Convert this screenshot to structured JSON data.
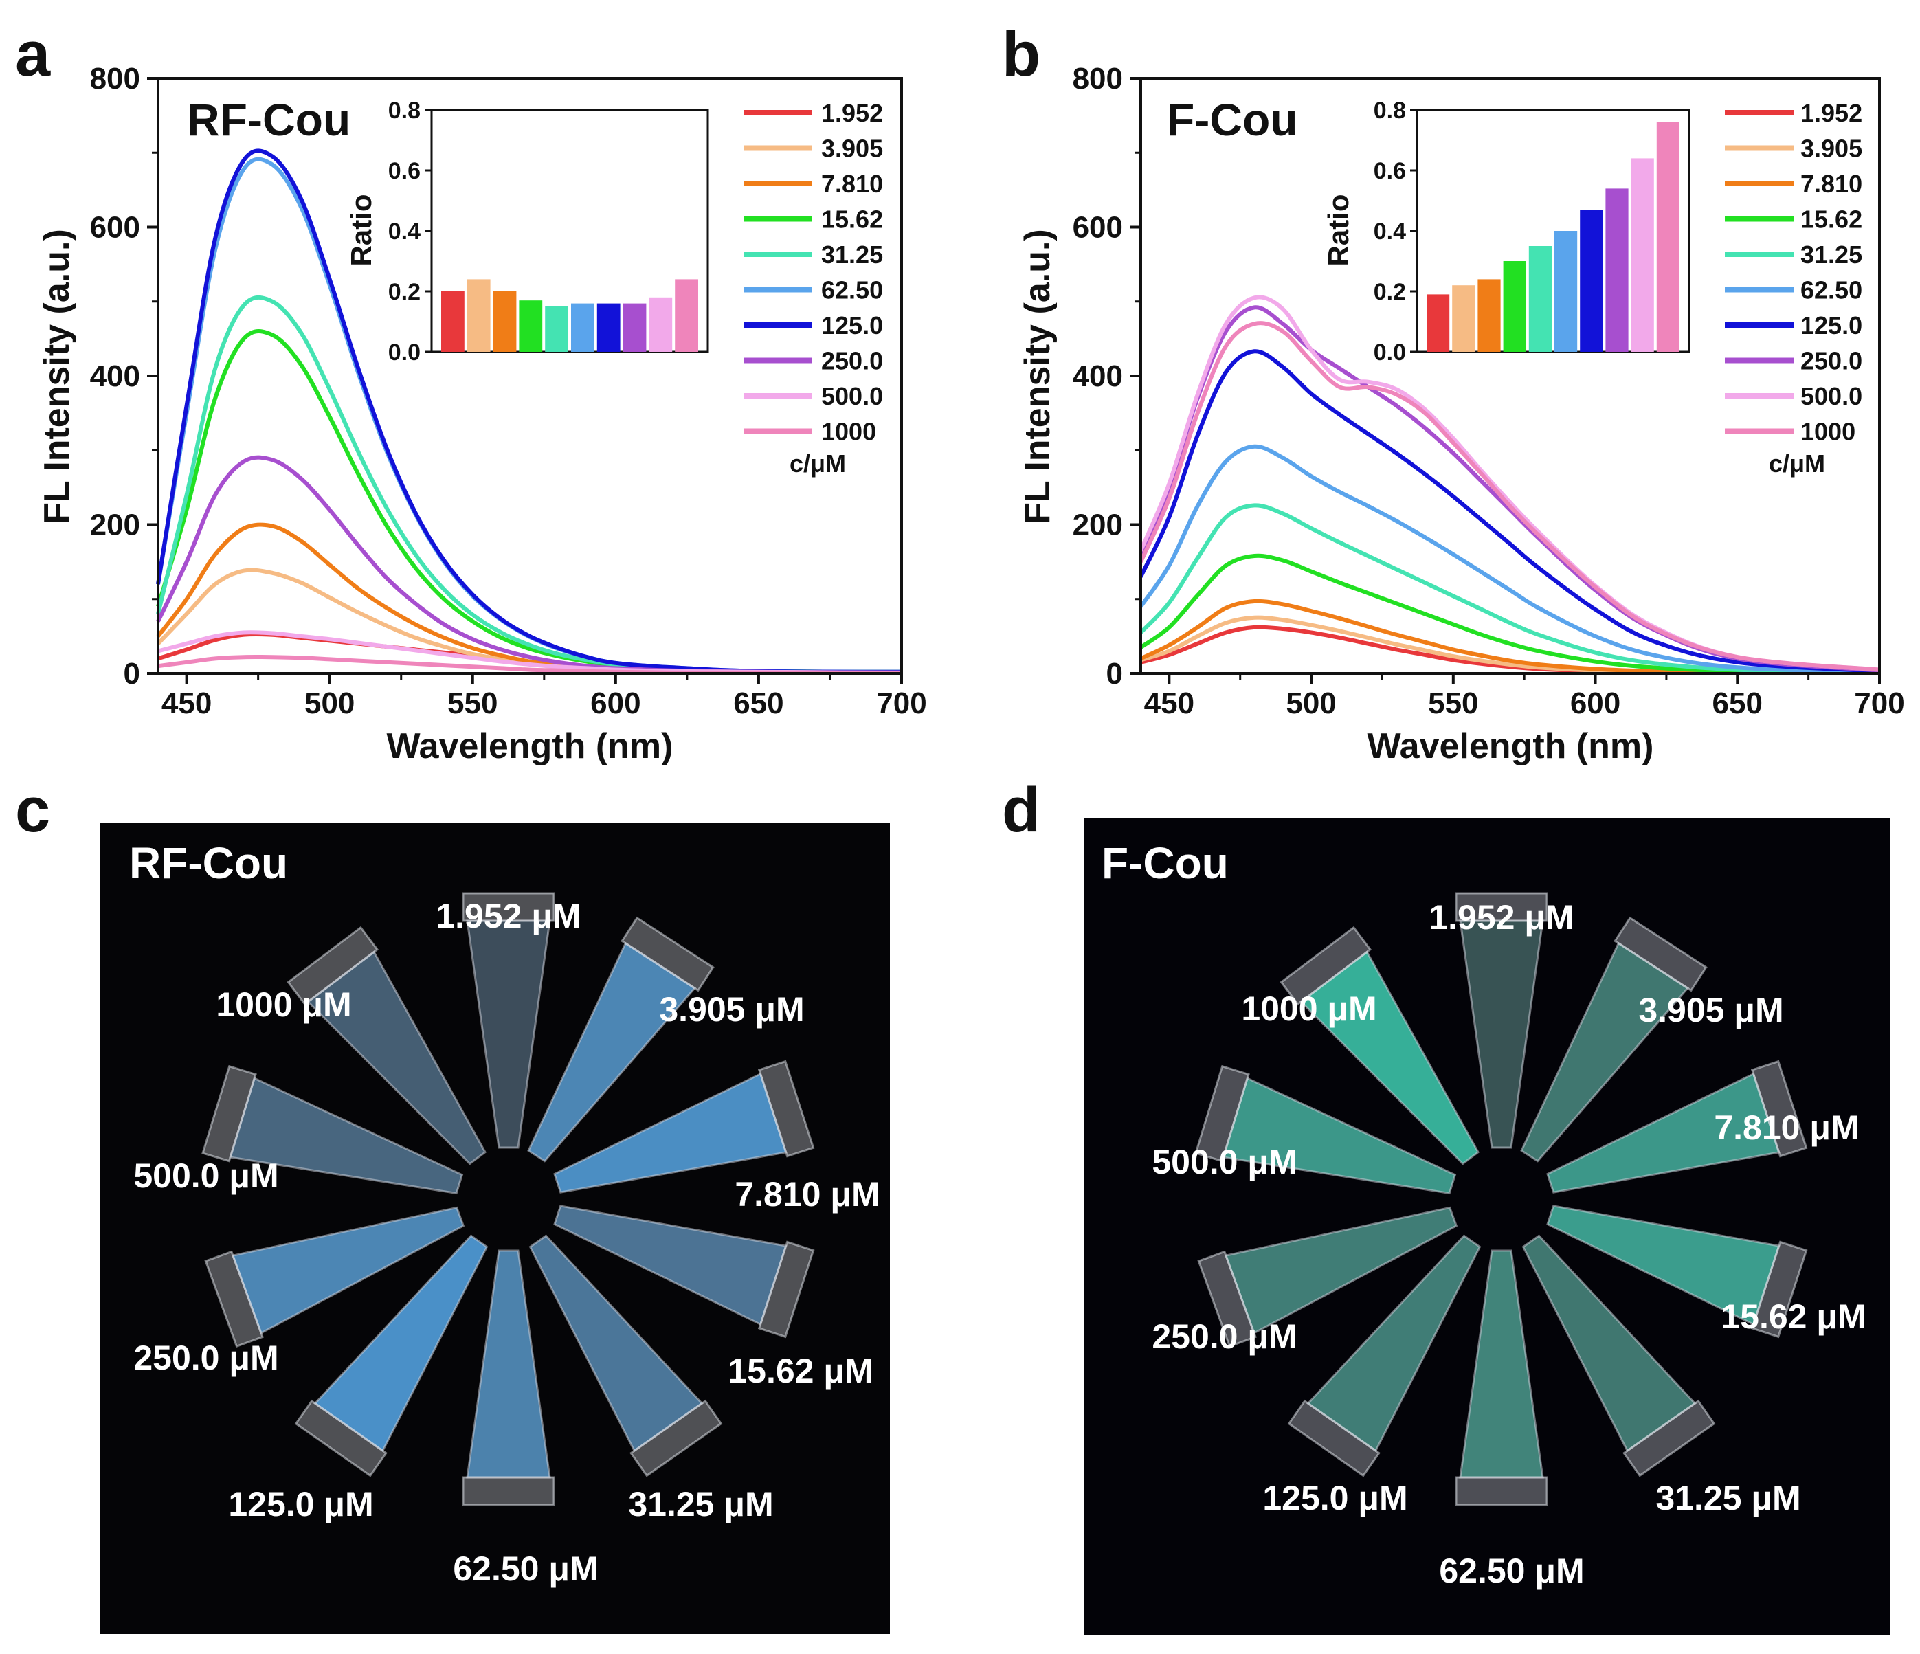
{
  "chart_data": [
    {
      "type": "line",
      "panel": "a",
      "title": "RF-Cou",
      "xlabel": "Wavelength (nm)",
      "ylabel": "FL Intensity (a.u.)",
      "xlim": [
        440,
        700
      ],
      "ylim": [
        0,
        800
      ],
      "xticks": [
        "450",
        "500",
        "550",
        "600",
        "650",
        "700"
      ],
      "yticks": [
        "0",
        "200",
        "400",
        "600",
        "800"
      ],
      "legend_title": "c/μM",
      "series": [
        {
          "name": "1.952",
          "color": "#e8383b",
          "x": [
            440,
            450,
            460,
            470,
            480,
            490,
            500,
            510,
            520,
            530,
            540,
            550,
            560,
            570,
            580,
            590,
            600,
            620,
            650,
            700
          ],
          "y": [
            20,
            32,
            45,
            52,
            52,
            48,
            44,
            40,
            36,
            32,
            28,
            24,
            20,
            16,
            12,
            9,
            7,
            4,
            2,
            1
          ]
        },
        {
          "name": "3.905",
          "color": "#f6bb84",
          "x": [
            440,
            450,
            460,
            470,
            480,
            490,
            500,
            510,
            520,
            530,
            540,
            550,
            560,
            570,
            580,
            590,
            600,
            620,
            650,
            700
          ],
          "y": [
            40,
            80,
            120,
            138,
            135,
            122,
            102,
            82,
            64,
            48,
            36,
            26,
            19,
            13,
            9,
            6,
            4,
            2,
            1,
            1
          ]
        },
        {
          "name": "7.810",
          "color": "#f07d17",
          "x": [
            440,
            450,
            460,
            470,
            480,
            490,
            500,
            510,
            520,
            530,
            540,
            550,
            560,
            570,
            580,
            590,
            600,
            620,
            650,
            700
          ],
          "y": [
            50,
            100,
            160,
            195,
            198,
            178,
            146,
            114,
            88,
            66,
            48,
            34,
            24,
            16,
            11,
            8,
            6,
            3,
            1,
            1
          ]
        },
        {
          "name": "15.62",
          "color": "#22e022",
          "x": [
            440,
            450,
            460,
            470,
            480,
            490,
            500,
            510,
            520,
            530,
            540,
            550,
            560,
            570,
            580,
            590,
            600,
            620,
            650,
            700
          ],
          "y": [
            90,
            220,
            370,
            450,
            455,
            415,
            345,
            268,
            198,
            142,
            100,
            70,
            48,
            33,
            23,
            16,
            11,
            6,
            3,
            2
          ]
        },
        {
          "name": "31.25",
          "color": "#44e3b2",
          "x": [
            440,
            450,
            460,
            470,
            480,
            490,
            500,
            510,
            520,
            530,
            540,
            550,
            560,
            570,
            580,
            590,
            600,
            620,
            650,
            700
          ],
          "y": [
            80,
            240,
            410,
            495,
            500,
            458,
            382,
            298,
            222,
            160,
            113,
            79,
            55,
            38,
            26,
            18,
            12,
            7,
            3,
            2
          ]
        },
        {
          "name": "62.50",
          "color": "#5aa4ec",
          "x": [
            440,
            450,
            460,
            470,
            480,
            490,
            500,
            510,
            520,
            530,
            540,
            550,
            560,
            570,
            580,
            590,
            600,
            620,
            650,
            700
          ],
          "y": [
            120,
            350,
            570,
            678,
            684,
            627,
            522,
            404,
            298,
            214,
            150,
            104,
            72,
            49,
            33,
            22,
            14,
            8,
            3,
            2
          ]
        },
        {
          "name": "125.0",
          "color": "#1212d8",
          "x": [
            440,
            450,
            460,
            470,
            480,
            490,
            500,
            510,
            520,
            530,
            540,
            550,
            560,
            570,
            580,
            590,
            600,
            620,
            650,
            700
          ],
          "y": [
            120,
            360,
            585,
            690,
            695,
            638,
            530,
            410,
            302,
            216,
            152,
            106,
            73,
            50,
            34,
            22,
            14,
            8,
            3,
            2
          ]
        },
        {
          "name": "250.0",
          "color": "#a74fcf",
          "x": [
            440,
            450,
            460,
            470,
            480,
            490,
            500,
            510,
            520,
            530,
            540,
            550,
            560,
            570,
            580,
            590,
            600,
            620,
            650,
            700
          ],
          "y": [
            70,
            150,
            240,
            285,
            287,
            262,
            220,
            172,
            128,
            94,
            66,
            46,
            32,
            22,
            15,
            10,
            7,
            4,
            2,
            1
          ]
        },
        {
          "name": "500.0",
          "color": "#f2a9ea",
          "x": [
            440,
            450,
            460,
            470,
            480,
            490,
            500,
            510,
            520,
            530,
            540,
            550,
            560,
            570,
            580,
            590,
            600,
            620,
            650,
            700
          ],
          "y": [
            30,
            40,
            50,
            55,
            54,
            50,
            46,
            41,
            36,
            31,
            26,
            21,
            16,
            12,
            9,
            7,
            5,
            3,
            2,
            1
          ]
        },
        {
          "name": "1000",
          "color": "#ef85bb",
          "x": [
            440,
            450,
            460,
            470,
            480,
            490,
            500,
            510,
            520,
            530,
            540,
            550,
            560,
            570,
            580,
            590,
            600,
            620,
            650,
            700
          ],
          "y": [
            10,
            15,
            20,
            22,
            22,
            21,
            19,
            17,
            15,
            13,
            11,
            9,
            7,
            5,
            4,
            3,
            2,
            1,
            1,
            1
          ]
        }
      ],
      "inset": {
        "type": "bar",
        "ylabel": "Ratio",
        "ylim": [
          0,
          0.8
        ],
        "yticks": [
          "0.0",
          "0.2",
          "0.4",
          "0.6",
          "0.8"
        ],
        "categories": [
          "1.952",
          "3.905",
          "7.810",
          "15.62",
          "31.25",
          "62.50",
          "125.0",
          "250.0",
          "500.0",
          "1000"
        ],
        "values": [
          0.2,
          0.24,
          0.2,
          0.17,
          0.15,
          0.16,
          0.16,
          0.16,
          0.18,
          0.24
        ]
      }
    },
    {
      "type": "line",
      "panel": "b",
      "title": "F-Cou",
      "xlabel": "Wavelength (nm)",
      "ylabel": "FL Intensity (a.u.)",
      "xlim": [
        440,
        700
      ],
      "ylim": [
        0,
        800
      ],
      "xticks": [
        "450",
        "500",
        "550",
        "600",
        "650",
        "700"
      ],
      "yticks": [
        "0",
        "200",
        "400",
        "600",
        "800"
      ],
      "legend_title": "c/μM",
      "series": [
        {
          "name": "1.952",
          "color": "#e8383b",
          "x": [
            440,
            450,
            460,
            470,
            480,
            490,
            500,
            510,
            520,
            530,
            540,
            550,
            560,
            570,
            580,
            600,
            620,
            650,
            700
          ],
          "y": [
            15,
            25,
            40,
            55,
            62,
            60,
            55,
            48,
            40,
            32,
            25,
            18,
            13,
            9,
            6,
            3,
            2,
            1,
            1
          ]
        },
        {
          "name": "3.905",
          "color": "#f6bb84",
          "x": [
            440,
            450,
            460,
            470,
            480,
            490,
            500,
            510,
            520,
            530,
            540,
            550,
            560,
            570,
            580,
            600,
            620,
            650,
            700
          ],
          "y": [
            18,
            30,
            50,
            68,
            75,
            72,
            65,
            57,
            48,
            39,
            31,
            23,
            17,
            12,
            8,
            4,
            2,
            1,
            1
          ]
        },
        {
          "name": "7.810",
          "color": "#f07d17",
          "x": [
            440,
            450,
            460,
            470,
            480,
            490,
            500,
            510,
            520,
            530,
            540,
            550,
            560,
            570,
            580,
            600,
            620,
            650,
            700
          ],
          "y": [
            20,
            38,
            62,
            88,
            97,
            93,
            84,
            74,
            63,
            52,
            42,
            32,
            24,
            17,
            12,
            6,
            3,
            1,
            1
          ]
        },
        {
          "name": "15.62",
          "color": "#22e022",
          "x": [
            440,
            450,
            460,
            470,
            480,
            490,
            500,
            510,
            520,
            530,
            540,
            550,
            560,
            570,
            580,
            600,
            620,
            650,
            700
          ],
          "y": [
            35,
            62,
            105,
            145,
            158,
            152,
            137,
            122,
            108,
            94,
            80,
            66,
            52,
            40,
            30,
            16,
            8,
            3,
            1
          ]
        },
        {
          "name": "31.25",
          "color": "#44e3b2",
          "x": [
            440,
            450,
            460,
            470,
            480,
            490,
            500,
            510,
            520,
            530,
            540,
            550,
            560,
            570,
            580,
            600,
            620,
            650,
            700
          ],
          "y": [
            55,
            95,
            155,
            210,
            226,
            215,
            195,
            176,
            158,
            140,
            122,
            104,
            86,
            68,
            52,
            28,
            14,
            5,
            1
          ]
        },
        {
          "name": "62.50",
          "color": "#5aa4ec",
          "x": [
            440,
            450,
            460,
            470,
            480,
            490,
            500,
            510,
            520,
            530,
            540,
            550,
            560,
            570,
            580,
            600,
            620,
            650,
            700
          ],
          "y": [
            90,
            145,
            225,
            285,
            305,
            290,
            265,
            244,
            225,
            205,
            183,
            160,
            136,
            112,
            88,
            50,
            25,
            8,
            2
          ]
        },
        {
          "name": "125.0",
          "color": "#1212d8",
          "x": [
            440,
            450,
            460,
            470,
            480,
            490,
            500,
            510,
            520,
            530,
            540,
            550,
            560,
            570,
            580,
            600,
            620,
            650,
            700
          ],
          "y": [
            130,
            210,
            320,
            405,
            433,
            412,
            376,
            348,
            322,
            296,
            268,
            238,
            206,
            174,
            142,
            86,
            44,
            15,
            3
          ]
        },
        {
          "name": "250.0",
          "color": "#a74fcf",
          "x": [
            440,
            450,
            460,
            470,
            480,
            490,
            500,
            510,
            520,
            530,
            540,
            550,
            560,
            570,
            580,
            600,
            620,
            650,
            700
          ],
          "y": [
            160,
            250,
            370,
            460,
            492,
            470,
            435,
            410,
            385,
            360,
            330,
            296,
            258,
            220,
            182,
            112,
            60,
            20,
            4
          ]
        },
        {
          "name": "500.0",
          "color": "#f2a9ea",
          "x": [
            440,
            450,
            460,
            470,
            480,
            490,
            500,
            510,
            520,
            530,
            540,
            550,
            560,
            570,
            580,
            600,
            620,
            650,
            700
          ],
          "y": [
            165,
            255,
            375,
            470,
            505,
            490,
            435,
            395,
            392,
            382,
            355,
            316,
            272,
            230,
            190,
            118,
            64,
            22,
            5
          ]
        },
        {
          "name": "1000",
          "color": "#ef85bb",
          "x": [
            440,
            450,
            460,
            470,
            480,
            490,
            500,
            510,
            520,
            530,
            540,
            550,
            560,
            570,
            580,
            600,
            620,
            650,
            700
          ],
          "y": [
            150,
            235,
            350,
            440,
            470,
            460,
            420,
            385,
            385,
            375,
            350,
            310,
            268,
            225,
            186,
            116,
            62,
            22,
            5
          ]
        }
      ],
      "inset": {
        "type": "bar",
        "ylabel": "Ratio",
        "ylim": [
          0,
          0.8
        ],
        "yticks": [
          "0.0",
          "0.2",
          "0.4",
          "0.6",
          "0.8"
        ],
        "categories": [
          "1.952",
          "3.905",
          "7.810",
          "15.62",
          "31.25",
          "62.50",
          "125.0",
          "250.0",
          "500.0",
          "1000"
        ],
        "values": [
          0.19,
          0.22,
          0.24,
          0.3,
          0.35,
          0.4,
          0.47,
          0.54,
          0.64,
          0.76
        ]
      }
    }
  ],
  "photos": [
    {
      "panel": "c",
      "title": "RF-Cou",
      "glow": "#4aa8f0",
      "tubes": [
        {
          "label": "1.952 μM",
          "intensity": 0.08
        },
        {
          "label": "3.905 μM",
          "intensity": 0.75
        },
        {
          "label": "7.810 μM",
          "intensity": 0.85
        },
        {
          "label": "15.62 μM",
          "intensity": 0.5
        },
        {
          "label": "31.25 μM",
          "intensity": 0.55
        },
        {
          "label": "62.50 μM",
          "intensity": 0.7
        },
        {
          "label": "125.0 μM",
          "intensity": 0.9
        },
        {
          "label": "250.0 μM",
          "intensity": 0.75
        },
        {
          "label": "500.0 μM",
          "intensity": 0.35
        },
        {
          "label": "1000 μM",
          "intensity": 0.25
        }
      ]
    },
    {
      "panel": "d",
      "title": "F-Cou",
      "glow": "#2fd0b0",
      "tubes": [
        {
          "label": "1.952 μM",
          "intensity": 0.1
        },
        {
          "label": "3.905 μM",
          "intensity": 0.4
        },
        {
          "label": "7.810 μM",
          "intensity": 0.7
        },
        {
          "label": "15.62 μM",
          "intensity": 0.75
        },
        {
          "label": "31.25 μM",
          "intensity": 0.4
        },
        {
          "label": "62.50 μM",
          "intensity": 0.5
        },
        {
          "label": "125.0 μM",
          "intensity": 0.45
        },
        {
          "label": "250.0 μM",
          "intensity": 0.45
        },
        {
          "label": "500.0 μM",
          "intensity": 0.7
        },
        {
          "label": "1000 μM",
          "intensity": 0.9
        }
      ]
    }
  ]
}
